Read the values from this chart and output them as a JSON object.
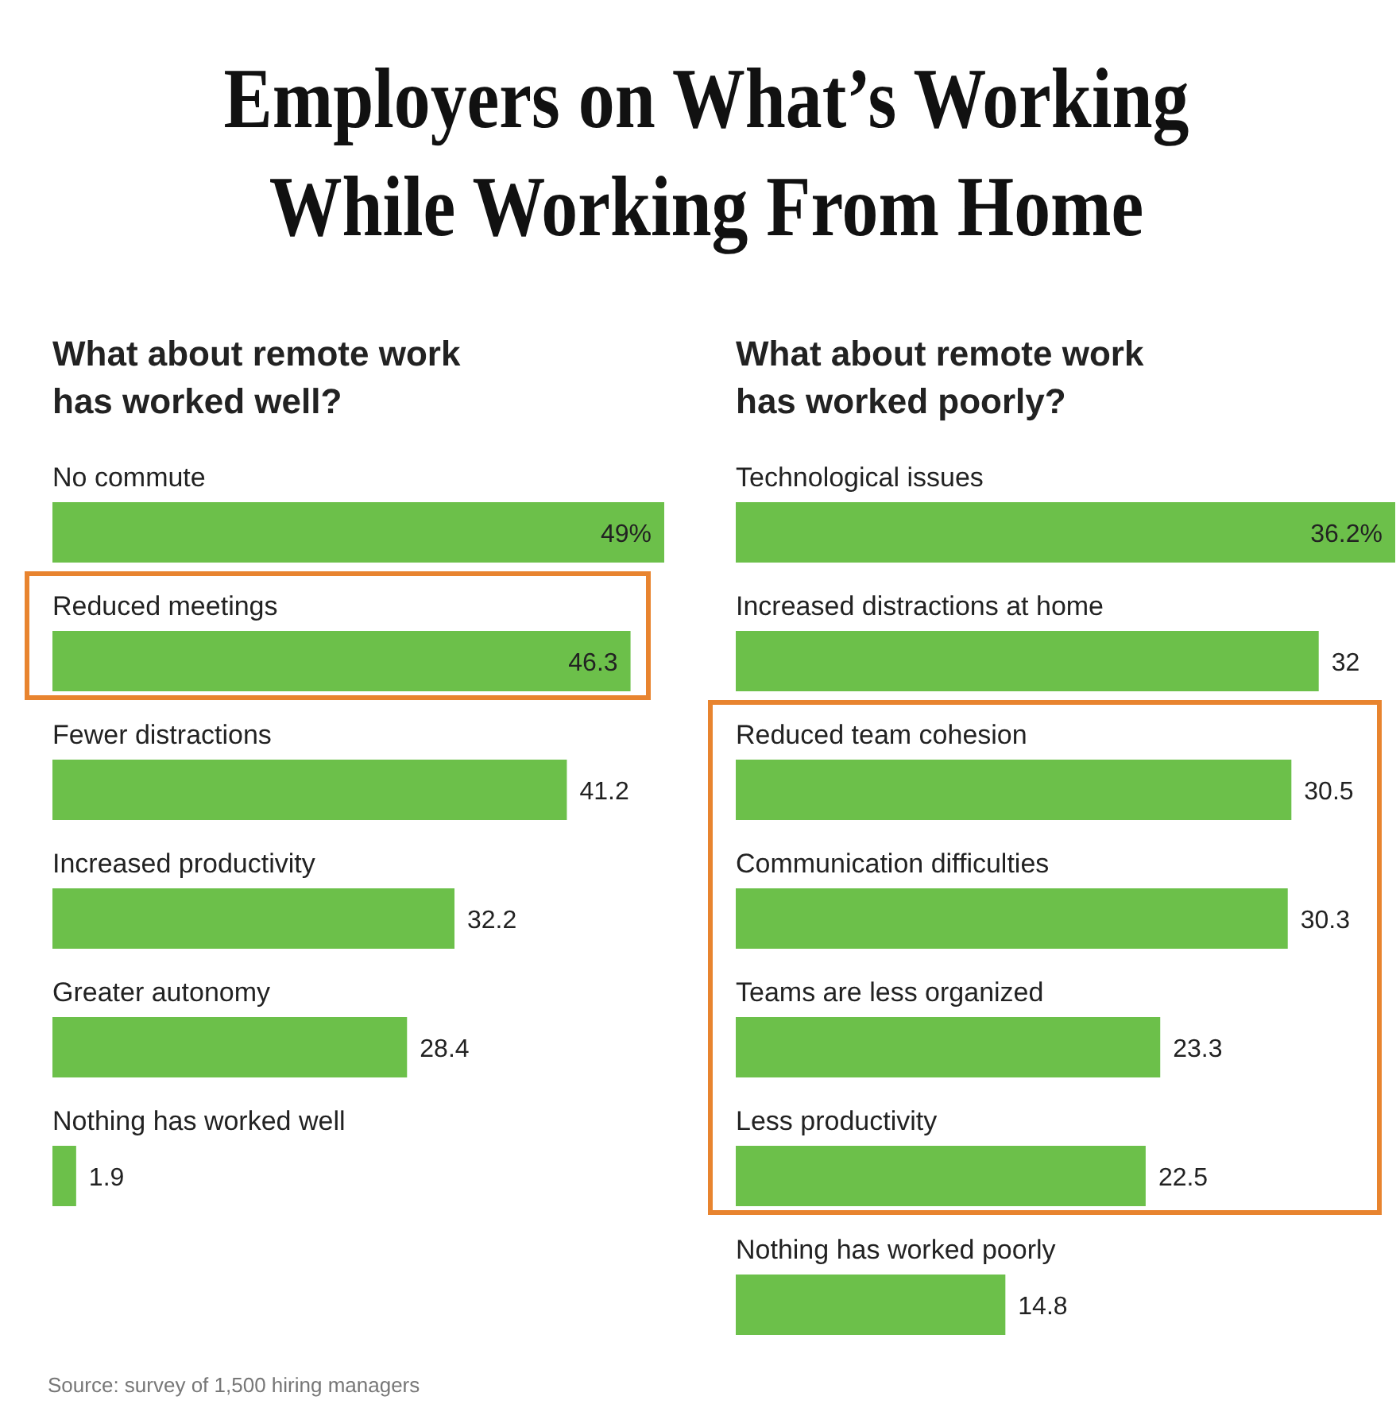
{
  "chart_data": [
    {
      "type": "bar",
      "orientation": "horizontal",
      "title": "Employers on What’s Working While Working From Home",
      "subtitle": "What about remote work has worked well?",
      "categories": [
        "No commute",
        "Reduced meetings",
        "Fewer distractions",
        "Increased productivity",
        "Greater autonomy",
        "Nothing has worked well"
      ],
      "values": [
        49,
        46.3,
        41.2,
        32.2,
        28.4,
        1.9
      ],
      "value_labels": [
        "49%",
        "46.3",
        "41.2",
        "32.2",
        "28.4",
        "1.9"
      ],
      "color": "#6cc04a",
      "annotations": [
        "Source: survey of 1,500 hiring managers"
      ]
    },
    {
      "type": "bar",
      "orientation": "horizontal",
      "subtitle": "What about remote work has worked poorly?",
      "categories": [
        "Technological issues",
        "Increased distractions at home",
        "Reduced team cohesion",
        "Communication difficulties",
        "Teams are less organized",
        "Less productivity",
        "Nothing has worked poorly"
      ],
      "values": [
        36.2,
        32,
        30.5,
        30.3,
        23.3,
        22.5,
        14.8
      ],
      "value_labels": [
        "36.2%",
        "32",
        "30.5",
        "30.3",
        "23.3",
        "22.5",
        "14.8"
      ],
      "color": "#6cc04a"
    }
  ]
}
